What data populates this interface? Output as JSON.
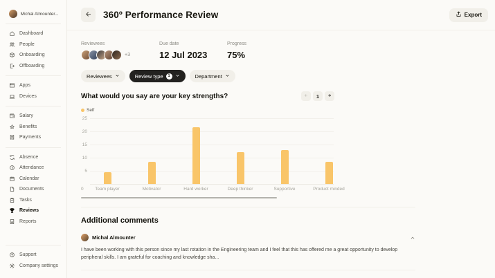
{
  "sidebar": {
    "user": {
      "name": "Michal Almounter..."
    },
    "groups": [
      {
        "items": [
          {
            "label": "Dashboard",
            "icon": "dashboard-icon"
          },
          {
            "label": "People",
            "icon": "people-icon"
          },
          {
            "label": "Onboarding",
            "icon": "onboarding-box-icon"
          },
          {
            "label": "Offboarding",
            "icon": "offboarding-icon"
          }
        ]
      },
      {
        "items": [
          {
            "label": "Apps",
            "icon": "apps-icon"
          },
          {
            "label": "Devices",
            "icon": "devices-icon"
          }
        ]
      },
      {
        "items": [
          {
            "label": "Salary",
            "icon": "salary-wallet-icon"
          },
          {
            "label": "Benefits",
            "icon": "benefits-star-icon"
          },
          {
            "label": "Payments",
            "icon": "payments-receipt-icon"
          }
        ]
      },
      {
        "items": [
          {
            "label": "Absence",
            "icon": "absence-icon"
          },
          {
            "label": "Attendance",
            "icon": "attendance-clock-icon"
          },
          {
            "label": "Calendar",
            "icon": "calendar-icon"
          },
          {
            "label": "Documents",
            "icon": "documents-icon"
          },
          {
            "label": "Tasks",
            "icon": "tasks-clipboard-icon"
          },
          {
            "label": "Reviews",
            "icon": "reviews-trophy-icon",
            "active": true
          },
          {
            "label": "Reports",
            "icon": "reports-icon"
          }
        ]
      },
      {
        "items": [
          {
            "label": "Support",
            "icon": "support-icon"
          },
          {
            "label": "Company settings",
            "icon": "gear-icon"
          }
        ]
      }
    ]
  },
  "header": {
    "title": "360º Performance Review",
    "export_label": "Export"
  },
  "meta": {
    "reviewees": {
      "label": "Reviewees",
      "extra_count": "+3",
      "avatars": [
        [
          "#caa27a",
          "#6e4a33"
        ],
        [
          "#8a94a6",
          "#31405a"
        ],
        [
          "#3c3c3f",
          "#caa584"
        ],
        [
          "#b9967b",
          "#5d3f2f"
        ],
        [
          "#2e2620",
          "#8c6a4e"
        ]
      ]
    },
    "due_date": {
      "label": "Due date",
      "value": "12 Jul 2023"
    },
    "progress": {
      "label": "Progress",
      "value": "75%"
    }
  },
  "filters": {
    "reviewees": {
      "label": "Reviewees"
    },
    "review_type": {
      "label": "Review type",
      "badge": "1"
    },
    "department": {
      "label": "Department"
    }
  },
  "pager": {
    "page": "1"
  },
  "chart_data": {
    "type": "bar",
    "title": "What would you say are your key strengths?",
    "categories": [
      "Team player",
      "Motivator",
      "Hard worker",
      "Deep thinker",
      "Supportive",
      "Product minded"
    ],
    "values": [
      4.5,
      8.5,
      21.5,
      12,
      13,
      8.5
    ],
    "series_name": "Self",
    "legend_position": "top-left",
    "xlabel": "",
    "ylabel": "",
    "ylim": [
      0,
      25
    ],
    "yticks": [
      25,
      20,
      15,
      10,
      5
    ],
    "origin_label": "0",
    "grid": true,
    "color": "#F9C569"
  },
  "comments": {
    "heading": "Additional comments",
    "items": [
      {
        "author": "Michal Almounter",
        "text": "I have been working with this person since my last rotation in the Engineering team and I feel that this has offered me a great opportunity to develop peripheral skills. I am grateful for coaching and knowledge sha..."
      }
    ]
  }
}
